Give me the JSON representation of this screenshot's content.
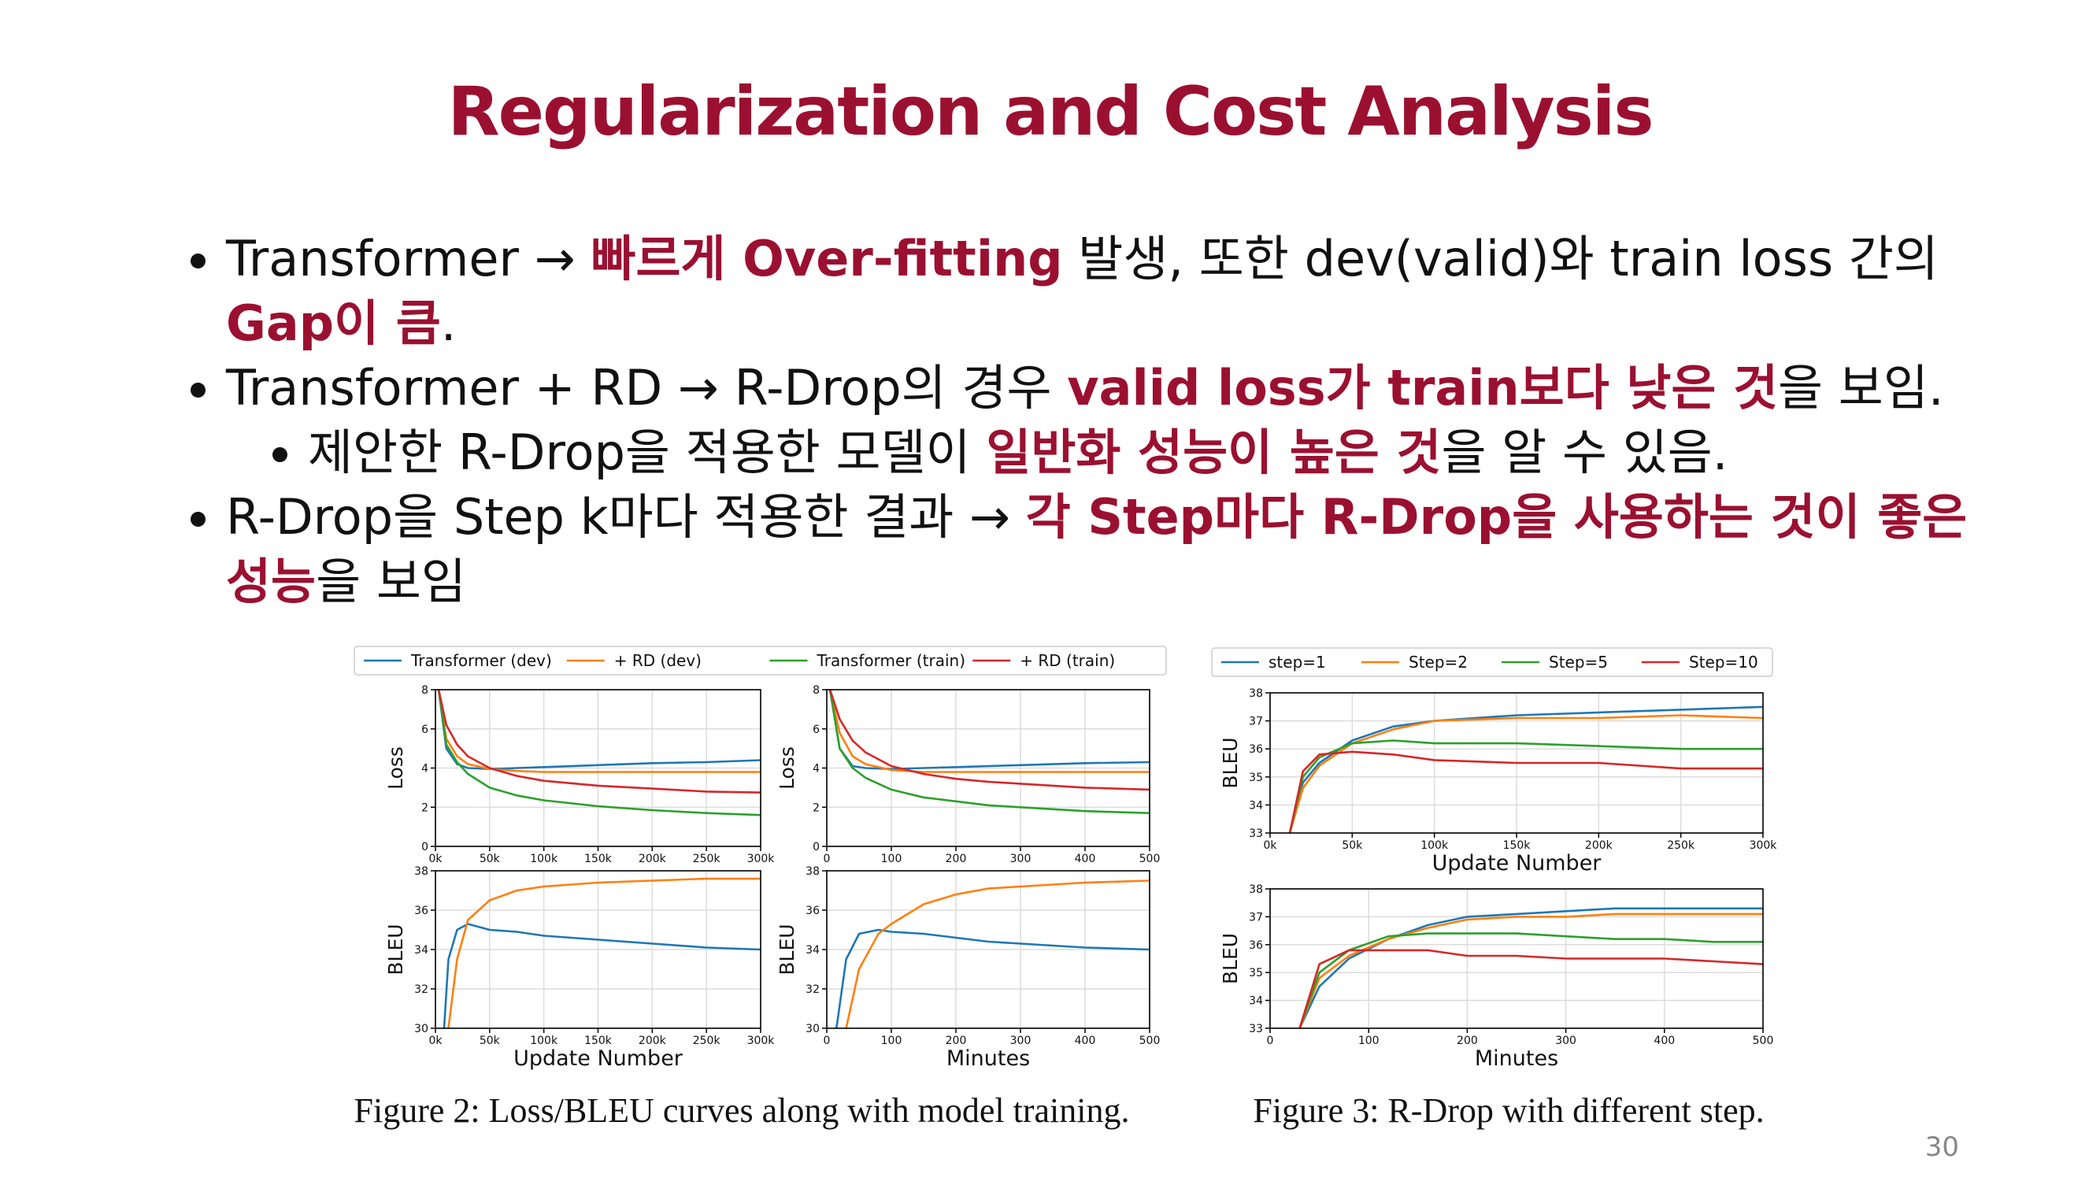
{
  "title": "Regularization and Cost Analysis",
  "bullets": [
    {
      "level": 1,
      "runs": [
        {
          "text": "Transformer → "
        },
        {
          "text": "빠르게 Over-fitting",
          "emphasis": true
        },
        {
          "text": " 발생, 또한 dev(valid)와 train loss 간의 "
        },
        {
          "text": "Gap이 큼",
          "emphasis": true
        },
        {
          "text": "."
        }
      ]
    },
    {
      "level": 1,
      "runs": [
        {
          "text": "Transformer + RD → R-Drop의 경우 "
        },
        {
          "text": "valid loss가 train보다 낮은 것",
          "emphasis": true
        },
        {
          "text": "을 보임."
        }
      ]
    },
    {
      "level": 2,
      "runs": [
        {
          "text": "제안한 R-Drop을 적용한 모델이 "
        },
        {
          "text": "일반화 성능이 높은 것",
          "emphasis": true
        },
        {
          "text": "을 알 수 있음."
        }
      ]
    },
    {
      "level": 1,
      "runs": [
        {
          "text": "R-Drop을 Step k마다 적용한 결과 → "
        },
        {
          "text": "각 Step마다 R-Drop을 사용하는 것이 좋은 성능",
          "emphasis": true
        },
        {
          "text": "을 보임"
        }
      ]
    }
  ],
  "figures": [
    {
      "caption": "Figure 2: Loss/BLEU curves along with model training.",
      "legend": [
        {
          "name": "Transformer (dev)",
          "color": "#1f77b4"
        },
        {
          "name": "+ RD (dev)",
          "color": "#ff7f0e"
        },
        {
          "name": "Transformer (train)",
          "color": "#2ca02c"
        },
        {
          "name": "+ RD (train)",
          "color": "#d62728"
        }
      ],
      "panels": [
        {
          "type": "line",
          "ylabel": "Loss",
          "grid": true,
          "x": [
            3000,
            10000,
            20000,
            30000,
            50000,
            75000,
            100000,
            150000,
            200000,
            250000,
            300000
          ],
          "xlim": [
            0,
            300000
          ],
          "xticks": [
            {
              "value": 0,
              "label": "0k"
            },
            {
              "value": 50000,
              "label": "50k"
            },
            {
              "value": 100000,
              "label": "100k"
            },
            {
              "value": 150000,
              "label": "150k"
            },
            {
              "value": 200000,
              "label": "200k"
            },
            {
              "value": 250000,
              "label": "250k"
            },
            {
              "value": 300000,
              "label": "300k"
            }
          ],
          "ylim": [
            0,
            8
          ],
          "yticks": [
            0,
            2,
            4,
            6,
            8
          ],
          "series": [
            {
              "color": "#1f77b4",
              "values": [
                8,
                5.0,
                4.2,
                4.0,
                3.95,
                4.0,
                4.05,
                4.15,
                4.25,
                4.3,
                4.4
              ]
            },
            {
              "color": "#ff7f0e",
              "values": [
                8,
                5.5,
                4.6,
                4.2,
                3.95,
                3.85,
                3.8,
                3.8,
                3.8,
                3.8,
                3.8
              ]
            },
            {
              "color": "#2ca02c",
              "values": [
                8,
                5.2,
                4.3,
                3.7,
                3.0,
                2.6,
                2.35,
                2.05,
                1.85,
                1.7,
                1.6
              ]
            },
            {
              "color": "#d62728",
              "values": [
                8,
                6.2,
                5.2,
                4.6,
                4.0,
                3.6,
                3.35,
                3.1,
                2.95,
                2.8,
                2.75
              ]
            }
          ]
        },
        {
          "type": "line",
          "ylabel": "Loss",
          "grid": true,
          "x": [
            5,
            20,
            40,
            60,
            100,
            150,
            200,
            250,
            300,
            400,
            500
          ],
          "xlim": [
            0,
            500
          ],
          "xticks": [
            0,
            100,
            200,
            300,
            400,
            500
          ],
          "ylim": [
            0,
            8
          ],
          "yticks": [
            0,
            2,
            4,
            6,
            8
          ],
          "series": [
            {
              "color": "#1f77b4",
              "values": [
                8,
                5.0,
                4.1,
                4.0,
                3.95,
                4.0,
                4.05,
                4.1,
                4.15,
                4.25,
                4.3
              ]
            },
            {
              "color": "#ff7f0e",
              "values": [
                8,
                5.8,
                4.6,
                4.2,
                3.9,
                3.8,
                3.8,
                3.8,
                3.8,
                3.8,
                3.8
              ]
            },
            {
              "color": "#2ca02c",
              "values": [
                8,
                5.0,
                4.0,
                3.5,
                2.9,
                2.5,
                2.3,
                2.1,
                2.0,
                1.8,
                1.7
              ]
            },
            {
              "color": "#d62728",
              "values": [
                8,
                6.5,
                5.4,
                4.8,
                4.1,
                3.7,
                3.45,
                3.3,
                3.2,
                3.0,
                2.9
              ]
            }
          ]
        },
        {
          "type": "line",
          "ylabel": "BLEU",
          "xlabel": "Update Number",
          "grid": true,
          "x": [
            8000,
            12000,
            20000,
            30000,
            50000,
            75000,
            100000,
            150000,
            200000,
            250000,
            300000
          ],
          "xlim": [
            0,
            300000
          ],
          "xticks": [
            {
              "value": 0,
              "label": "0k"
            },
            {
              "value": 50000,
              "label": "50k"
            },
            {
              "value": 100000,
              "label": "100k"
            },
            {
              "value": 150000,
              "label": "150k"
            },
            {
              "value": 200000,
              "label": "200k"
            },
            {
              "value": 250000,
              "label": "250k"
            },
            {
              "value": 300000,
              "label": "300k"
            }
          ],
          "ylim": [
            30,
            38
          ],
          "yticks": [
            30,
            32,
            34,
            36,
            38
          ],
          "series": [
            {
              "color": "#1f77b4",
              "values": [
                30,
                33.5,
                35.0,
                35.3,
                35.0,
                34.9,
                34.7,
                34.5,
                34.3,
                34.1,
                34.0
              ]
            },
            {
              "color": "#ff7f0e",
              "values": [
                null,
                30,
                33.5,
                35.5,
                36.5,
                37.0,
                37.2,
                37.4,
                37.5,
                37.6,
                37.6
              ]
            }
          ]
        },
        {
          "type": "line",
          "ylabel": "BLEU",
          "xlabel": "Minutes",
          "grid": true,
          "x": [
            15,
            30,
            50,
            80,
            100,
            150,
            200,
            250,
            300,
            400,
            500
          ],
          "xlim": [
            0,
            500
          ],
          "xticks": [
            0,
            100,
            200,
            300,
            400,
            500
          ],
          "ylim": [
            30,
            38
          ],
          "yticks": [
            30,
            32,
            34,
            36,
            38
          ],
          "series": [
            {
              "color": "#1f77b4",
              "values": [
                30,
                33.5,
                34.8,
                35.0,
                34.9,
                34.8,
                34.6,
                34.4,
                34.3,
                34.1,
                34.0
              ]
            },
            {
              "color": "#ff7f0e",
              "values": [
                null,
                30,
                33,
                34.8,
                35.3,
                36.3,
                36.8,
                37.1,
                37.2,
                37.4,
                37.5
              ]
            }
          ]
        }
      ]
    },
    {
      "caption": "Figure 3: R-Drop with different step.",
      "legend": [
        {
          "name": "step=1",
          "color": "#1f77b4"
        },
        {
          "name": "Step=2",
          "color": "#ff7f0e"
        },
        {
          "name": "Step=5",
          "color": "#2ca02c"
        },
        {
          "name": "Step=10",
          "color": "#d62728"
        }
      ],
      "panels": [
        {
          "type": "line",
          "ylabel": "BLEU",
          "xlabel": "Update Number",
          "grid": true,
          "x": [
            12000,
            20000,
            30000,
            50000,
            75000,
            100000,
            150000,
            200000,
            250000,
            300000
          ],
          "xlim": [
            0,
            300000
          ],
          "xticks": [
            {
              "value": 0,
              "label": "0k"
            },
            {
              "value": 50000,
              "label": "50k"
            },
            {
              "value": 100000,
              "label": "100k"
            },
            {
              "value": 150000,
              "label": "150k"
            },
            {
              "value": 200000,
              "label": "200k"
            },
            {
              "value": 250000,
              "label": "250k"
            },
            {
              "value": 300000,
              "label": "300k"
            }
          ],
          "ylim": [
            33,
            38
          ],
          "yticks": [
            33,
            34,
            35,
            36,
            37,
            38
          ],
          "series": [
            {
              "color": "#1f77b4",
              "values": [
                33,
                34.8,
                35.5,
                36.3,
                36.8,
                37.0,
                37.2,
                37.3,
                37.4,
                37.5
              ]
            },
            {
              "color": "#ff7f0e",
              "values": [
                33,
                34.6,
                35.4,
                36.2,
                36.7,
                37.0,
                37.1,
                37.1,
                37.2,
                37.1
              ]
            },
            {
              "color": "#2ca02c",
              "values": [
                33,
                35.0,
                35.7,
                36.2,
                36.3,
                36.2,
                36.2,
                36.1,
                36.0,
                36.0
              ]
            },
            {
              "color": "#d62728",
              "values": [
                33,
                35.2,
                35.8,
                35.9,
                35.8,
                35.6,
                35.5,
                35.5,
                35.3,
                35.3
              ]
            }
          ]
        },
        {
          "type": "line",
          "ylabel": "BLEU",
          "xlabel": "Minutes",
          "grid": true,
          "x": [
            30,
            50,
            80,
            120,
            160,
            200,
            250,
            300,
            350,
            400,
            450,
            500
          ],
          "xlim": [
            0,
            500
          ],
          "xticks": [
            0,
            100,
            200,
            300,
            400,
            500
          ],
          "ylim": [
            33,
            38
          ],
          "yticks": [
            33,
            34,
            35,
            36,
            37,
            38
          ],
          "series": [
            {
              "color": "#1f77b4",
              "values": [
                33,
                34.5,
                35.5,
                36.2,
                36.7,
                37.0,
                37.1,
                37.2,
                37.3,
                37.3,
                37.3,
                37.3
              ]
            },
            {
              "color": "#ff7f0e",
              "values": [
                33,
                34.8,
                35.6,
                36.2,
                36.6,
                36.9,
                37.0,
                37.0,
                37.1,
                37.1,
                37.1,
                37.1
              ]
            },
            {
              "color": "#2ca02c",
              "values": [
                33,
                35.0,
                35.8,
                36.3,
                36.4,
                36.4,
                36.4,
                36.3,
                36.2,
                36.2,
                36.1,
                36.1
              ]
            },
            {
              "color": "#d62728",
              "values": [
                33,
                35.3,
                35.8,
                35.8,
                35.8,
                35.6,
                35.6,
                35.5,
                35.5,
                35.5,
                35.4,
                35.3
              ]
            }
          ]
        }
      ]
    }
  ],
  "page_number": "30"
}
